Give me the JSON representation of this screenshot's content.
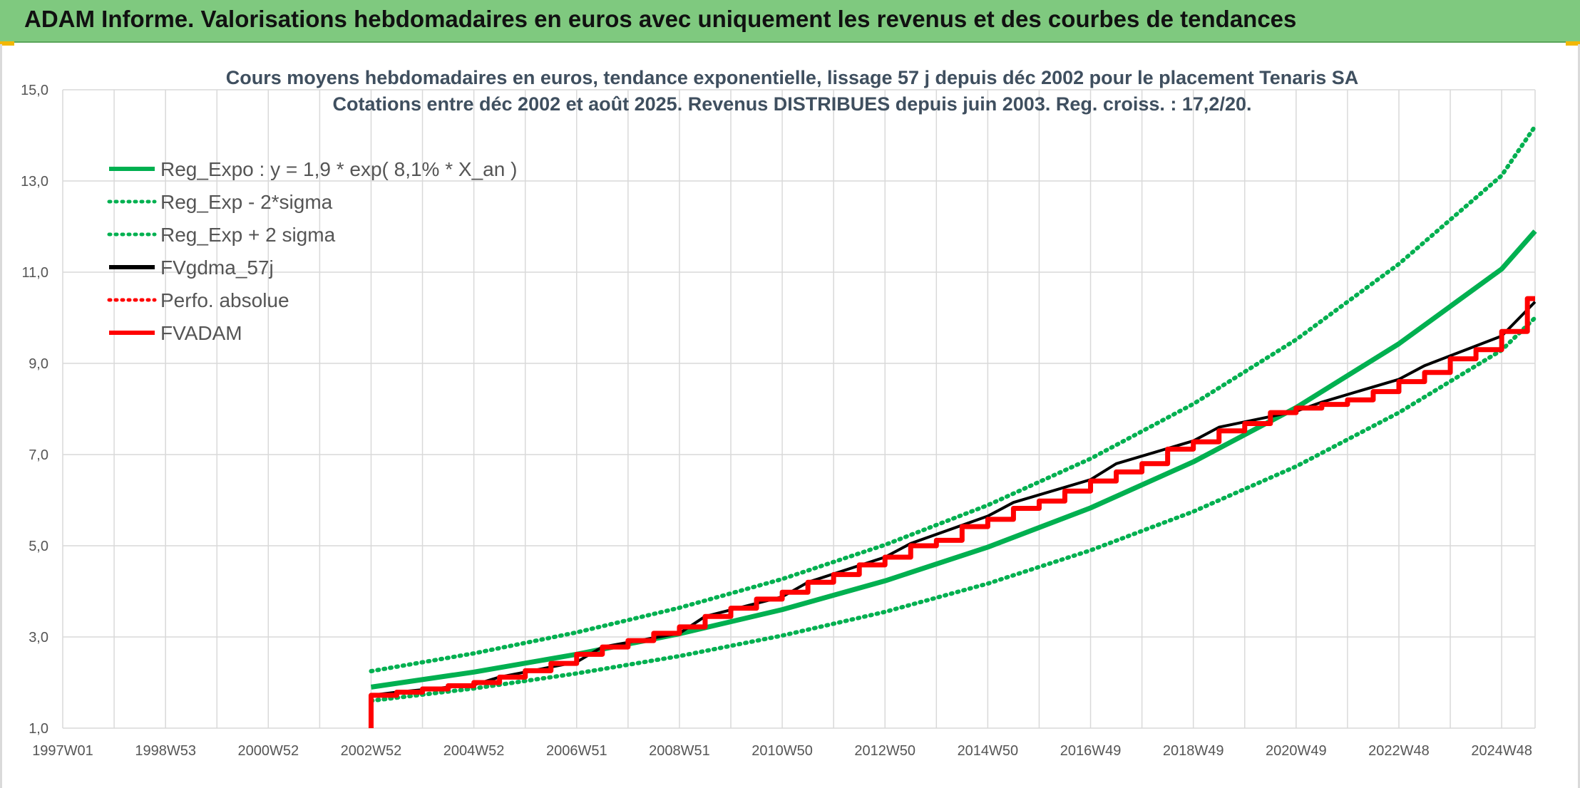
{
  "header": {
    "title": "ADAM Informe. Valorisations hebdomadaires en euros avec uniquement les revenus et des courbes de tendances"
  },
  "colors": {
    "banner": "#7fc97f",
    "green": "#00b050",
    "red": "#ff0000",
    "black": "#000000",
    "grid": "#d9d9d9"
  },
  "chart_data": {
    "type": "line",
    "title": "Cours moyens hebdomadaires en euros, tendance exponentielle, lissage 57 j depuis déc 2002 pour le placement Tenaris SA",
    "subtitle": "Cotations entre déc 2002 et août 2025. Revenus DISTRIBUES depuis juin 2003. Reg. croiss. : 17,2/20.",
    "xlabel": "",
    "ylabel": "",
    "ylim": [
      1.0,
      15.0
    ],
    "xlim": [
      1997.0,
      2025.65
    ],
    "yticks": [
      "1,0",
      "3,0",
      "5,0",
      "7,0",
      "9,0",
      "11,0",
      "13,0",
      "15,0"
    ],
    "xticks": [
      {
        "label": "1997W01",
        "x": 1997.0
      },
      {
        "label": "1998W53",
        "x": 1999.0
      },
      {
        "label": "2000W52",
        "x": 2001.0
      },
      {
        "label": "2002W52",
        "x": 2003.0
      },
      {
        "label": "2004W52",
        "x": 2005.0
      },
      {
        "label": "2006W51",
        "x": 2007.0
      },
      {
        "label": "2008W51",
        "x": 2009.0
      },
      {
        "label": "2010W50",
        "x": 2011.0
      },
      {
        "label": "2012W50",
        "x": 2013.0
      },
      {
        "label": "2014W50",
        "x": 2015.0
      },
      {
        "label": "2016W49",
        "x": 2017.0
      },
      {
        "label": "2018W49",
        "x": 2019.0
      },
      {
        "label": "2020W49",
        "x": 2021.0
      },
      {
        "label": "2022W48",
        "x": 2023.0
      },
      {
        "label": "2024W48",
        "x": 2025.0
      }
    ],
    "grid": true,
    "legend_position": "top-left",
    "series": [
      {
        "name": "Reg_Expo : y = 1,9 * exp( 8,1% *  X_an )",
        "color": "#00b050",
        "style": "solid",
        "x": [
          2003.0,
          2005.0,
          2007.0,
          2009.0,
          2011.0,
          2013.0,
          2015.0,
          2017.0,
          2019.0,
          2021.0,
          2023.0,
          2025.0,
          2025.65
        ],
        "y": [
          1.9,
          2.23,
          2.62,
          3.07,
          3.6,
          4.23,
          4.97,
          5.83,
          6.84,
          8.03,
          9.43,
          11.07,
          11.9
        ]
      },
      {
        "name": "Reg_Exp - 2*sigma",
        "color": "#00b050",
        "style": "dotted",
        "x": [
          2003.0,
          2005.0,
          2007.0,
          2009.0,
          2011.0,
          2013.0,
          2015.0,
          2017.0,
          2019.0,
          2021.0,
          2023.0,
          2025.0,
          2025.65
        ],
        "y": [
          1.6,
          1.87,
          2.2,
          2.58,
          3.03,
          3.55,
          4.17,
          4.9,
          5.75,
          6.74,
          7.92,
          9.29,
          10.0
        ]
      },
      {
        "name": "Reg_Exp + 2 sigma",
        "color": "#00b050",
        "style": "dotted",
        "x": [
          2003.0,
          2005.0,
          2007.0,
          2009.0,
          2011.0,
          2013.0,
          2015.0,
          2017.0,
          2019.0,
          2021.0,
          2023.0,
          2025.0,
          2025.65
        ],
        "y": [
          2.25,
          2.64,
          3.1,
          3.64,
          4.27,
          5.02,
          5.89,
          6.91,
          8.11,
          9.52,
          11.18,
          13.12,
          14.2
        ]
      },
      {
        "name": "FVgdma_57j",
        "color": "#000000",
        "style": "solid",
        "x": [
          2003.0,
          2003.5,
          2005.0,
          2005.5,
          2007.0,
          2007.5,
          2009.0,
          2009.5,
          2011.0,
          2011.5,
          2013.0,
          2013.5,
          2015.0,
          2015.5,
          2017.0,
          2017.5,
          2019.0,
          2019.5,
          2021.0,
          2021.5,
          2023.0,
          2023.5,
          2025.0,
          2025.65
        ],
        "y": [
          1.72,
          1.79,
          1.95,
          2.12,
          2.45,
          2.78,
          3.08,
          3.45,
          3.88,
          4.2,
          4.75,
          5.05,
          5.65,
          5.95,
          6.45,
          6.8,
          7.3,
          7.6,
          7.95,
          8.15,
          8.65,
          8.95,
          9.6,
          10.35
        ]
      },
      {
        "name": "Perfo. absolue",
        "color": "#ff0000",
        "style": "dotted",
        "x": [],
        "y": []
      },
      {
        "name": "FVADAM",
        "color": "#ff0000",
        "style": "solid",
        "x": [
          2003.0,
          2003.0,
          2003.5,
          2004.0,
          2004.5,
          2005.0,
          2005.5,
          2006.0,
          2006.5,
          2007.0,
          2007.5,
          2008.0,
          2008.5,
          2009.0,
          2009.5,
          2010.0,
          2010.5,
          2011.0,
          2011.5,
          2012.0,
          2012.5,
          2013.0,
          2013.5,
          2014.0,
          2014.5,
          2015.0,
          2015.5,
          2016.0,
          2016.5,
          2017.0,
          2017.5,
          2018.0,
          2018.5,
          2019.0,
          2019.5,
          2020.0,
          2020.5,
          2021.0,
          2021.5,
          2022.0,
          2022.5,
          2023.0,
          2023.5,
          2024.0,
          2024.5,
          2025.0,
          2025.5
        ],
        "y": [
          1.0,
          1.72,
          1.79,
          1.86,
          1.93,
          2.0,
          2.12,
          2.26,
          2.42,
          2.62,
          2.78,
          2.92,
          3.08,
          3.22,
          3.45,
          3.63,
          3.83,
          3.98,
          4.2,
          4.37,
          4.58,
          4.75,
          5.0,
          5.12,
          5.42,
          5.58,
          5.82,
          5.98,
          6.2,
          6.42,
          6.62,
          6.8,
          7.12,
          7.28,
          7.52,
          7.68,
          7.92,
          8.02,
          8.1,
          8.2,
          8.38,
          8.6,
          8.8,
          9.1,
          9.3,
          9.7,
          10.42
        ]
      }
    ]
  }
}
